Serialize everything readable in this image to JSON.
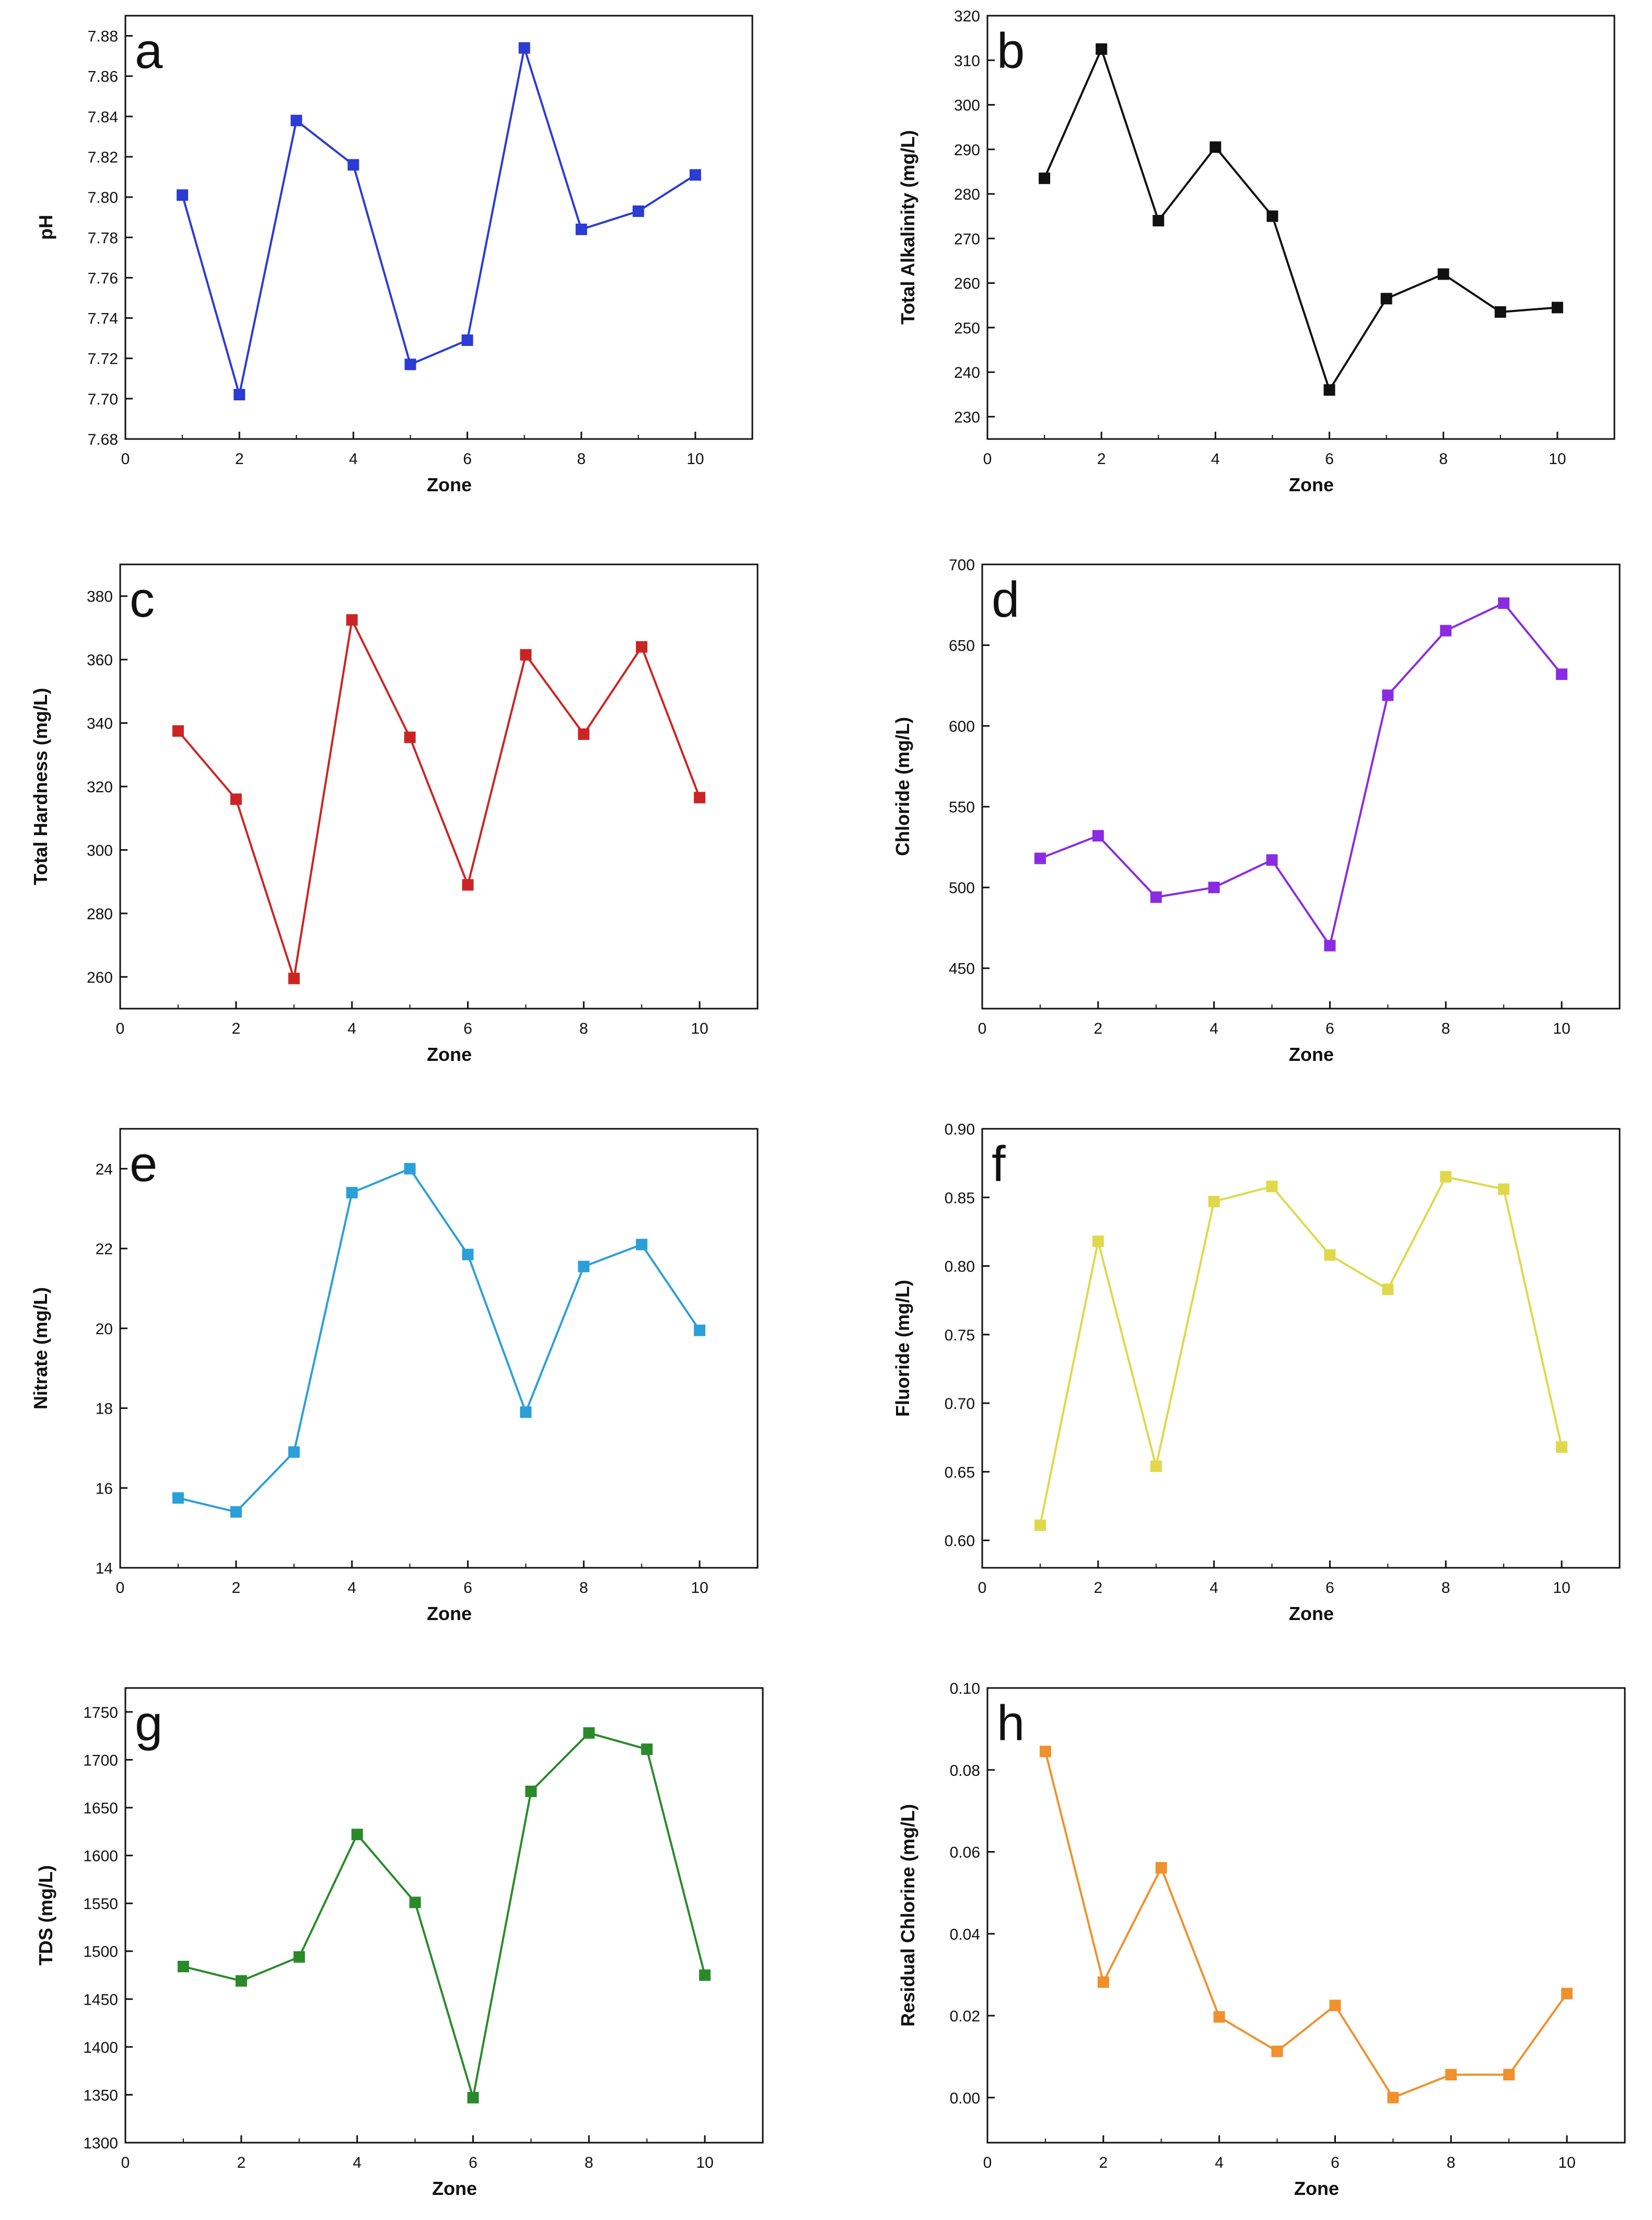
{
  "chart_data": [
    {
      "type": "line",
      "panel": "a",
      "color": "#2b3bd4",
      "xlabel": "Zone",
      "ylabel": "pH",
      "xlim": [
        0,
        11
      ],
      "ylim": [
        7.68,
        7.89
      ],
      "xticks": [
        0,
        2,
        4,
        6,
        8,
        10
      ],
      "xtick_labels": [
        "0",
        "2",
        "4",
        "6",
        "8",
        "10"
      ],
      "yticks": [
        7.68,
        7.7,
        7.72,
        7.74,
        7.76,
        7.78,
        7.8,
        7.82,
        7.84,
        7.86,
        7.88
      ],
      "ytick_labels": [
        "7.68",
        "7.70",
        "7.72",
        "7.74",
        "7.76",
        "7.78",
        "7.80",
        "7.82",
        "7.84",
        "7.86",
        "7.88"
      ],
      "x": [
        1,
        2,
        3,
        4,
        5,
        6,
        7,
        8,
        9,
        10
      ],
      "values": [
        7.801,
        7.702,
        7.838,
        7.816,
        7.717,
        7.729,
        7.874,
        7.784,
        7.793,
        7.811
      ]
    },
    {
      "type": "line",
      "panel": "b",
      "color": "#111111",
      "xlabel": "Zone",
      "ylabel": "Total Alkalinity (mg/L)",
      "xlim": [
        0,
        11
      ],
      "ylim": [
        225,
        320
      ],
      "xticks": [
        0,
        2,
        4,
        6,
        8,
        10
      ],
      "xtick_labels": [
        "0",
        "2",
        "4",
        "6",
        "8",
        "10"
      ],
      "yticks": [
        230,
        240,
        250,
        260,
        270,
        280,
        290,
        300,
        310,
        320
      ],
      "ytick_labels": [
        "230",
        "240",
        "250",
        "260",
        "270",
        "280",
        "290",
        "300",
        "310",
        "320"
      ],
      "x": [
        1,
        2,
        3,
        4,
        5,
        6,
        7,
        8,
        9,
        10
      ],
      "values": [
        283.5,
        312.5,
        274,
        290.5,
        275,
        236,
        256.5,
        262,
        253.5,
        254.5
      ]
    },
    {
      "type": "line",
      "panel": "c",
      "color": "#cc2424",
      "xlabel": "Zone",
      "ylabel": "Total Hardness (mg/L)",
      "xlim": [
        0,
        11
      ],
      "ylim": [
        250,
        390
      ],
      "xticks": [
        0,
        2,
        4,
        6,
        8,
        10
      ],
      "xtick_labels": [
        "0",
        "2",
        "4",
        "6",
        "8",
        "10"
      ],
      "yticks": [
        260,
        280,
        300,
        320,
        340,
        360,
        380
      ],
      "ytick_labels": [
        "260",
        "280",
        "300",
        "320",
        "340",
        "360",
        "380"
      ],
      "x": [
        1,
        2,
        3,
        4,
        5,
        6,
        7,
        8,
        9,
        10
      ],
      "values": [
        337.5,
        316,
        259.5,
        372.5,
        335.5,
        289,
        361.5,
        336.5,
        364,
        316.5
      ]
    },
    {
      "type": "line",
      "panel": "d",
      "color": "#8a2be2",
      "xlabel": "Zone",
      "ylabel": "Chloride (mg/L)",
      "xlim": [
        0,
        11
      ],
      "ylim": [
        425,
        700
      ],
      "xticks": [
        0,
        2,
        4,
        6,
        8,
        10
      ],
      "xtick_labels": [
        "0",
        "2",
        "4",
        "6",
        "8",
        "10"
      ],
      "yticks": [
        450,
        500,
        550,
        600,
        650,
        700
      ],
      "ytick_labels": [
        "450",
        "500",
        "550",
        "600",
        "650",
        "700"
      ],
      "x": [
        1,
        2,
        3,
        4,
        5,
        6,
        7,
        8,
        9,
        10
      ],
      "values": [
        518,
        532,
        494,
        500,
        517,
        464,
        619,
        659,
        676,
        632
      ]
    },
    {
      "type": "line",
      "panel": "e",
      "color": "#2b9fd8",
      "xlabel": "Zone",
      "ylabel": "Nitrate (mg/L)",
      "xlim": [
        0,
        11
      ],
      "ylim": [
        14,
        25
      ],
      "xticks": [
        0,
        2,
        4,
        6,
        8,
        10
      ],
      "xtick_labels": [
        "0",
        "2",
        "4",
        "6",
        "8",
        "10"
      ],
      "yticks": [
        14,
        16,
        18,
        20,
        22,
        24
      ],
      "ytick_labels": [
        "14",
        "16",
        "18",
        "20",
        "22",
        "24"
      ],
      "x": [
        1,
        2,
        3,
        4,
        5,
        6,
        7,
        8,
        9,
        10
      ],
      "values": [
        15.75,
        15.4,
        16.9,
        23.4,
        24.0,
        21.85,
        17.9,
        21.55,
        22.1,
        19.95
      ]
    },
    {
      "type": "line",
      "panel": "f",
      "color": "#e0d84a",
      "xlabel": "Zone",
      "ylabel": "Fluoride (mg/L)",
      "xlim": [
        0,
        11
      ],
      "ylim": [
        0.58,
        0.9
      ],
      "xticks": [
        0,
        2,
        4,
        6,
        8,
        10
      ],
      "xtick_labels": [
        "0",
        "2",
        "4",
        "6",
        "8",
        "10"
      ],
      "yticks": [
        0.6,
        0.65,
        0.7,
        0.75,
        0.8,
        0.85,
        0.9
      ],
      "ytick_labels": [
        "0.60",
        "0.65",
        "0.70",
        "0.75",
        "0.80",
        "0.85",
        "0.90"
      ],
      "x": [
        1,
        2,
        3,
        4,
        5,
        6,
        7,
        8,
        9,
        10
      ],
      "values": [
        0.611,
        0.818,
        0.654,
        0.847,
        0.858,
        0.808,
        0.783,
        0.865,
        0.856,
        0.668
      ]
    },
    {
      "type": "line",
      "panel": "g",
      "color": "#2a8a2a",
      "xlabel": "Zone",
      "ylabel": "TDS (mg/L)",
      "xlim": [
        0,
        11
      ],
      "ylim": [
        1300,
        1775
      ],
      "xticks": [
        0,
        2,
        4,
        6,
        8,
        10
      ],
      "xtick_labels": [
        "0",
        "2",
        "4",
        "6",
        "8",
        "10"
      ],
      "yticks": [
        1300,
        1350,
        1400,
        1450,
        1500,
        1550,
        1600,
        1650,
        1700,
        1750
      ],
      "ytick_labels": [
        "1300",
        "1350",
        "1400",
        "1450",
        "1500",
        "1550",
        "1600",
        "1650",
        "1700",
        "1750"
      ],
      "x": [
        1,
        2,
        3,
        4,
        5,
        6,
        7,
        8,
        9,
        10
      ],
      "values": [
        1484,
        1469,
        1494,
        1622,
        1551,
        1347,
        1667,
        1728,
        1711,
        1475
      ]
    },
    {
      "type": "line",
      "panel": "h",
      "color": "#f0912d",
      "xlabel": "Zone",
      "ylabel": "Residual Chlorine  (mg/L)",
      "xlim": [
        0,
        11
      ],
      "ylim": [
        -0.011,
        0.1
      ],
      "xticks": [
        0,
        2,
        4,
        6,
        8,
        10
      ],
      "xtick_labels": [
        "0",
        "2",
        "4",
        "6",
        "8",
        "10"
      ],
      "yticks": [
        0.0,
        0.02,
        0.04,
        0.06,
        0.08,
        0.1
      ],
      "ytick_labels": [
        "0.00",
        "0.02",
        "0.04",
        "0.06",
        "0.08",
        "0.10"
      ],
      "x": [
        1,
        2,
        3,
        4,
        5,
        6,
        7,
        8,
        9,
        10
      ],
      "values": [
        0.0845,
        0.0282,
        0.0561,
        0.0197,
        0.0113,
        0.0225,
        0.0,
        0.0056,
        0.0056,
        0.0254
      ]
    }
  ]
}
